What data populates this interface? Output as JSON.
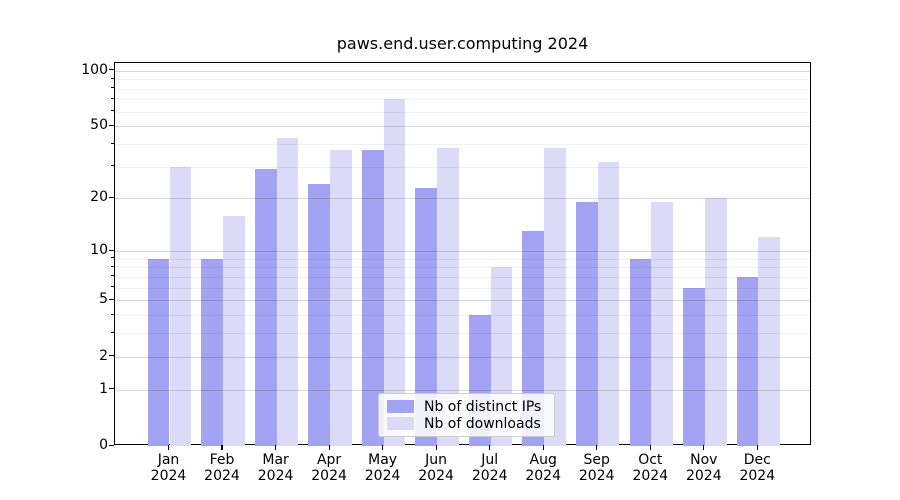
{
  "chart_data": {
    "type": "bar",
    "title": "paws.end.user.computing 2024",
    "x_months": [
      "Jan",
      "Feb",
      "Mar",
      "Apr",
      "May",
      "Jun",
      "Jul",
      "Aug",
      "Sep",
      "Oct",
      "Nov",
      "Dec"
    ],
    "x_year": "2024",
    "series": [
      {
        "name": "Nb of distinct IPs",
        "color": "#a3a3f3",
        "values": [
          9,
          9,
          29,
          24,
          37,
          23,
          4,
          13,
          19,
          9,
          6,
          7
        ]
      },
      {
        "name": "Nb of downloads",
        "color": "#dbdbf8",
        "values": [
          30,
          16,
          43,
          37,
          70,
          38,
          8,
          38,
          32,
          19,
          20,
          12
        ]
      }
    ],
    "y_axis": {
      "scale": "log1p",
      "ticks": [
        0,
        1,
        2,
        5,
        10,
        20,
        50,
        100
      ],
      "minor_ticks": [
        3,
        4,
        6,
        7,
        8,
        9,
        30,
        40,
        60,
        70,
        80,
        90
      ],
      "ylim": [
        0,
        110
      ]
    },
    "grid": true,
    "legend_position": "lower center",
    "background_color": "#ffffff",
    "spine_color": "#000000"
  }
}
